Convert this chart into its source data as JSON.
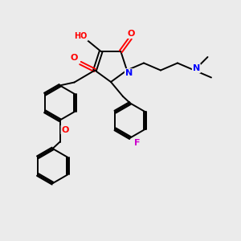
{
  "bg_color": "#ebebeb",
  "atom_colors": {
    "O": "#ff0000",
    "N": "#0000ff",
    "F": "#cc00cc",
    "C": "#000000",
    "H": "#808080"
  }
}
